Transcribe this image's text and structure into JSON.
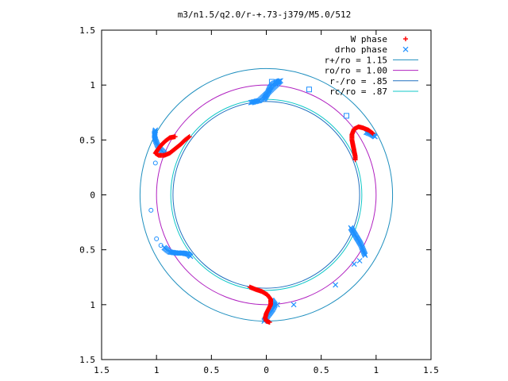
{
  "chart_data": {
    "type": "scatter",
    "title": "m3/n1.5/q2.0/r-+.73-j379/M5.0/512",
    "xlim": [
      -1.5,
      1.5
    ],
    "ylim": [
      -1.5,
      1.5
    ],
    "xticks": [
      {
        "value": -1.5,
        "label": "1.5"
      },
      {
        "value": -1.0,
        "label": "1"
      },
      {
        "value": -0.5,
        "label": "0.5"
      },
      {
        "value": 0,
        "label": "0"
      },
      {
        "value": 0.5,
        "label": "0.5"
      },
      {
        "value": 1.0,
        "label": "1"
      },
      {
        "value": 1.5,
        "label": "1.5"
      }
    ],
    "yticks": [
      {
        "value": -1.5,
        "label": "1.5"
      },
      {
        "value": -1.0,
        "label": "1"
      },
      {
        "value": -0.5,
        "label": "0.5"
      },
      {
        "value": 0,
        "label": "0"
      },
      {
        "value": 0.5,
        "label": "0.5"
      },
      {
        "value": 1.0,
        "label": "1"
      },
      {
        "value": 1.5,
        "label": "1.5"
      }
    ],
    "grid": false,
    "legend_position": "top-right",
    "circles": [
      {
        "name": "r+/ro = 1.15",
        "radius": 1.15,
        "color": "#1f8fbf"
      },
      {
        "name": "ro/ro = 1.00",
        "radius": 1.0,
        "color": "#b020c0"
      },
      {
        "name": "r-/ro = .85",
        "radius": 0.85,
        "color": "#2070c0"
      },
      {
        "name": "rc/ro = .87",
        "radius": 0.87,
        "color": "#10c8c8"
      }
    ],
    "series": [
      {
        "name": "W phase",
        "marker": "plus",
        "color": "#ff0000",
        "arms": [
          {
            "points": [
              [
                -0.83,
                0.53
              ],
              [
                -0.88,
                0.52
              ],
              [
                -0.92,
                0.49
              ],
              [
                -0.96,
                0.45
              ],
              [
                -0.99,
                0.41
              ],
              [
                -1.01,
                0.38
              ],
              [
                -0.98,
                0.36
              ],
              [
                -0.93,
                0.36
              ],
              [
                -0.88,
                0.38
              ],
              [
                -0.83,
                0.42
              ],
              [
                -0.78,
                0.46
              ],
              [
                -0.74,
                0.5
              ],
              [
                -0.7,
                0.53
              ]
            ]
          },
          {
            "points": [
              [
                0.97,
                0.56
              ],
              [
                0.93,
                0.59
              ],
              [
                0.88,
                0.61
              ],
              [
                0.84,
                0.62
              ],
              [
                0.8,
                0.6
              ],
              [
                0.78,
                0.55
              ],
              [
                0.78,
                0.5
              ],
              [
                0.79,
                0.45
              ],
              [
                0.8,
                0.4
              ],
              [
                0.81,
                0.35
              ],
              [
                0.81,
                0.32
              ]
            ]
          },
          {
            "points": [
              [
                -0.15,
                -0.84
              ],
              [
                -0.1,
                -0.86
              ],
              [
                -0.04,
                -0.88
              ],
              [
                0.01,
                -0.91
              ],
              [
                0.04,
                -0.95
              ],
              [
                0.04,
                -1.0
              ],
              [
                0.02,
                -1.04
              ],
              [
                0.0,
                -1.08
              ],
              [
                -0.01,
                -1.12
              ],
              [
                0.0,
                -1.15
              ],
              [
                0.03,
                -1.16
              ]
            ]
          }
        ]
      },
      {
        "name": "drho phase",
        "marker": "cross",
        "color": "#1e90ff",
        "arms": [
          {
            "points": [
              [
                -0.02,
                0.87
              ],
              [
                0.01,
                0.92
              ],
              [
                0.03,
                0.97
              ],
              [
                0.06,
                1.01
              ],
              [
                0.1,
                1.03
              ],
              [
                0.13,
                1.04
              ],
              [
                -0.06,
                0.86
              ],
              [
                -0.1,
                0.85
              ],
              [
                -0.14,
                0.84
              ]
            ]
          },
          {
            "points": [
              [
                -1.01,
                0.59
              ],
              [
                -1.02,
                0.55
              ],
              [
                -1.01,
                0.5
              ],
              [
                -0.99,
                0.45
              ],
              [
                -0.96,
                0.41
              ],
              [
                -0.93,
                0.38
              ]
            ]
          },
          {
            "points": [
              [
                -0.93,
                -0.48
              ],
              [
                -0.88,
                -0.52
              ],
              [
                -0.82,
                -0.53
              ],
              [
                -0.76,
                -0.53
              ],
              [
                -0.71,
                -0.54
              ],
              [
                -0.69,
                -0.56
              ]
            ]
          },
          {
            "points": [
              [
                0.77,
                -0.3
              ],
              [
                0.8,
                -0.35
              ],
              [
                0.83,
                -0.4
              ],
              [
                0.86,
                -0.45
              ],
              [
                0.88,
                -0.5
              ],
              [
                0.9,
                -0.55
              ]
            ]
          },
          {
            "points": [
              [
                0.05,
                -0.96
              ],
              [
                0.08,
                -1.0
              ],
              [
                0.06,
                -1.04
              ],
              [
                0.03,
                -1.08
              ],
              [
                0.0,
                -1.12
              ],
              [
                -0.02,
                -1.15
              ]
            ]
          },
          {
            "points": [
              [
                0.91,
                0.57
              ],
              [
                0.96,
                0.55
              ],
              [
                0.99,
                0.53
              ]
            ]
          }
        ],
        "outliers": [
          [
            0.63,
            -0.82
          ],
          [
            0.8,
            -0.63
          ],
          [
            0.85,
            -0.6
          ],
          [
            0.25,
            -1.0
          ],
          [
            0.1,
            -1.0
          ]
        ],
        "squares": [
          [
            0.05,
            1.03
          ],
          [
            0.11,
            1.03
          ],
          [
            0.39,
            0.96
          ],
          [
            0.73,
            0.72
          ]
        ],
        "circles": [
          [
            -1.01,
            0.29
          ],
          [
            -1.05,
            -0.14
          ],
          [
            -1.0,
            -0.4
          ],
          [
            -0.96,
            -0.46
          ]
        ]
      }
    ]
  }
}
